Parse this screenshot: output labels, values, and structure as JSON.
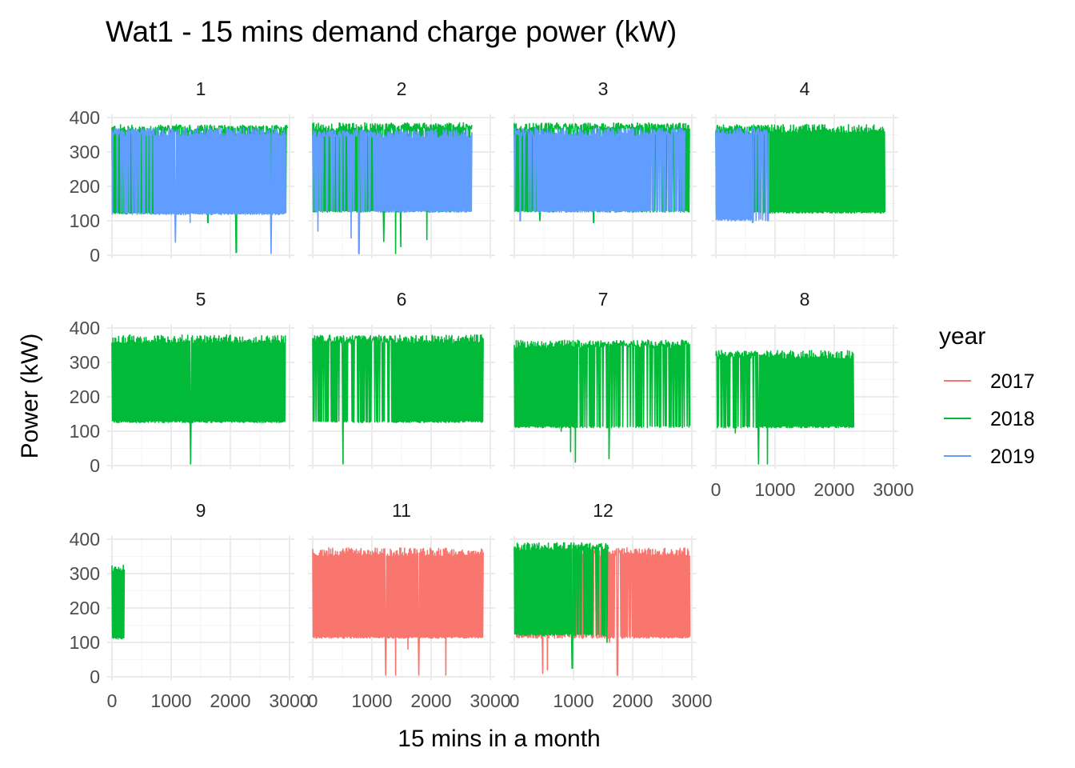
{
  "chart_data": {
    "type": "line",
    "title": "Wat1 - 15 mins demand charge power (kW)",
    "xlabel": "15 mins in a month",
    "ylabel": "Power (kW)",
    "xlim": [
      0,
      3000
    ],
    "ylim": [
      0,
      400
    ],
    "x_ticks": [
      0,
      1000,
      2000,
      3000
    ],
    "x_tick_labels": [
      "0",
      "1000",
      "2000",
      "3000"
    ],
    "y_ticks": [
      0,
      100,
      200,
      300,
      400
    ],
    "y_tick_labels": [
      "0",
      "100",
      "200",
      "300",
      "400"
    ],
    "grid": true,
    "facet_by": "month",
    "legend": {
      "title": "year",
      "position": "right",
      "entries": [
        {
          "label": "2017",
          "color": "#F8766D"
        },
        {
          "label": "2018",
          "color": "#00BA38"
        },
        {
          "label": "2019",
          "color": "#619CFF"
        }
      ]
    },
    "facets": [
      {
        "label": "1",
        "series": [
          {
            "name": "2018",
            "x_end": 2970,
            "low": 120,
            "high": 375,
            "dense_from": 0,
            "dense_to": 690,
            "dips": [
              [
                2100,
                8
              ],
              [
                1620,
                95
              ]
            ]
          },
          {
            "name": "2019",
            "x_end": 2940,
            "low": 118,
            "high": 365,
            "dense_from": 700,
            "dense_to": 2940,
            "dips": [
              [
                1070,
                38
              ],
              [
                2690,
                5
              ],
              [
                1320,
                95
              ]
            ]
          }
        ]
      },
      {
        "label": "2",
        "series": [
          {
            "name": "2018",
            "x_end": 2690,
            "low": 125,
            "high": 380,
            "dense_from": 0,
            "dense_to": 1000,
            "dips": [
              [
                1400,
                5
              ],
              [
                1490,
                25
              ],
              [
                1200,
                40
              ],
              [
                1930,
                45
              ]
            ]
          },
          {
            "name": "2019",
            "x_end": 2690,
            "low": 125,
            "high": 360,
            "dense_from": 1020,
            "dense_to": 2690,
            "dips": [
              [
                780,
                5
              ],
              [
                650,
                50
              ],
              [
                90,
                70
              ]
            ]
          }
        ]
      },
      {
        "label": "3",
        "series": [
          {
            "name": "2018",
            "x_end": 2970,
            "low": 125,
            "high": 380,
            "dense_from": 0,
            "dense_to": 400,
            "dips": [
              [
                430,
                100
              ],
              [
                1340,
                95
              ]
            ]
          },
          {
            "name": "2019",
            "x_end": 2880,
            "low": 125,
            "high": 365,
            "dense_from": 400,
            "dense_to": 2300,
            "dips": [
              [
                100,
                100
              ]
            ]
          }
        ]
      },
      {
        "label": "4",
        "series": [
          {
            "name": "2018",
            "x_end": 2860,
            "low": 122,
            "high": 375,
            "dense_from": 900,
            "dense_to": 2860,
            "dips": []
          },
          {
            "name": "2019",
            "x_end": 900,
            "low": 100,
            "high": 365,
            "dense_from": 0,
            "dense_to": 600,
            "dips": [
              [
                620,
                95
              ],
              [
                880,
                100
              ]
            ]
          }
        ]
      },
      {
        "label": "5",
        "series": [
          {
            "name": "2018",
            "x_end": 2930,
            "low": 125,
            "high": 375,
            "dense_from": 0,
            "dense_to": 2930,
            "dips": [
              [
                1330,
                5
              ]
            ]
          }
        ]
      },
      {
        "label": "6",
        "series": [
          {
            "name": "2018",
            "x_end": 2880,
            "low": 125,
            "high": 375,
            "dense_from": 1350,
            "dense_to": 2880,
            "dips": [
              [
                510,
                5
              ]
            ]
          }
        ]
      },
      {
        "label": "7",
        "series": [
          {
            "name": "2018",
            "x_end": 2970,
            "low": 110,
            "high": 360,
            "dense_from": 0,
            "dense_to": 1000,
            "dips": [
              [
                1030,
                10
              ],
              [
                950,
                40
              ],
              [
                1600,
                20
              ],
              [
                790,
                100
              ]
            ]
          }
        ]
      },
      {
        "label": "8",
        "series": [
          {
            "name": "2018",
            "x_end": 2330,
            "low": 110,
            "high": 330,
            "dense_from": 700,
            "dense_to": 2330,
            "dips": [
              [
                720,
                5
              ],
              [
                870,
                5
              ],
              [
                330,
                95
              ]
            ]
          }
        ]
      },
      {
        "label": "9",
        "series": [
          {
            "name": "2018",
            "x_end": 210,
            "low": 110,
            "high": 320,
            "dense_from": 0,
            "dense_to": 210,
            "dips": []
          }
        ]
      },
      {
        "label": "11",
        "series": [
          {
            "name": "2017",
            "x_end": 2880,
            "low": 112,
            "high": 370,
            "dense_from": 0,
            "dense_to": 2880,
            "dips": [
              [
                1230,
                5
              ],
              [
                1400,
                5
              ],
              [
                1790,
                5
              ],
              [
                2250,
                5
              ],
              [
                1610,
                80
              ]
            ]
          }
        ]
      },
      {
        "label": "12",
        "series": [
          {
            "name": "2017",
            "x_end": 2970,
            "low": 112,
            "high": 370,
            "dense_from": 2000,
            "dense_to": 2970,
            "dips": [
              [
                480,
                10
              ],
              [
                560,
                20
              ],
              [
                1740,
                5
              ],
              [
                1610,
                100
              ]
            ]
          },
          {
            "name": "2018",
            "x_end": 1600,
            "low": 120,
            "high": 385,
            "dense_from": 0,
            "dense_to": 1000,
            "dips": [
              [
                980,
                25
              ],
              [
                1570,
                100
              ]
            ]
          }
        ]
      }
    ]
  }
}
